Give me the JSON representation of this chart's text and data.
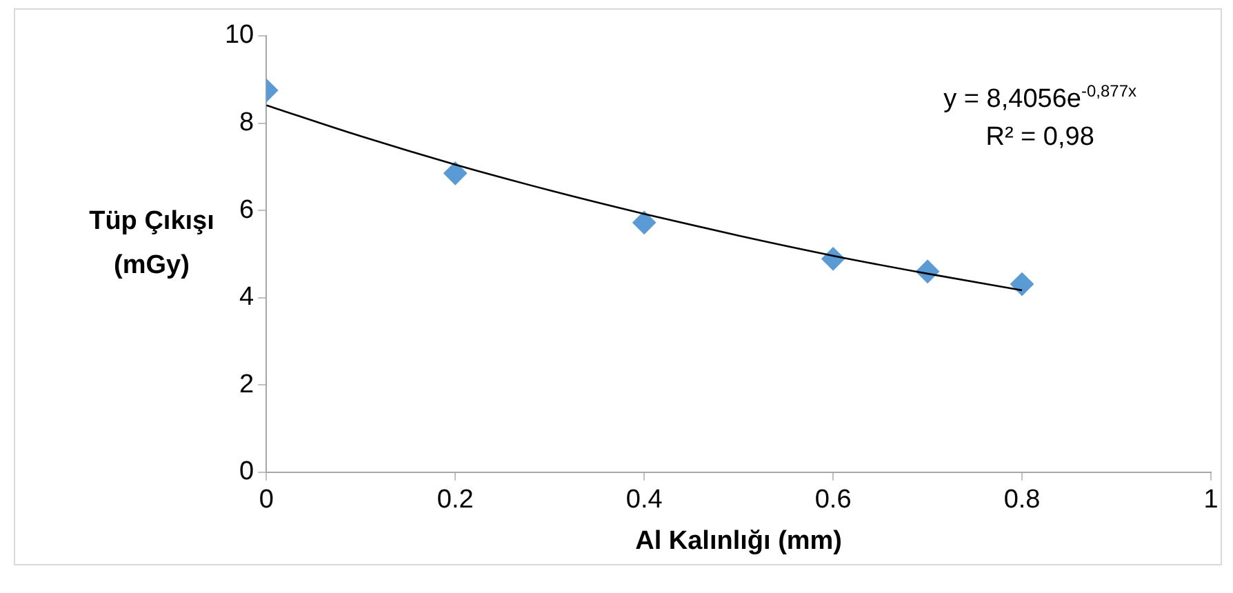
{
  "chart_data": {
    "type": "scatter",
    "xlabel": "Al Kalınlığı (mm)",
    "ylabel": "Tüp Çıkışı (mGy)",
    "annotations": [
      "y = 8,4056e$^{-0,877x}$",
      "R² = 0,98"
    ],
    "series": [
      {
        "type": "scatter",
        "color": "#5b9bd5",
        "marker": "diamond",
        "x": [
          0,
          0.2,
          0.4,
          0.6,
          0.7,
          0.8
        ],
        "values": [
          8.75,
          6.85,
          5.72,
          4.89,
          4.6,
          4.31
        ]
      },
      {
        "type": "line",
        "color": "#000000",
        "marker": "none",
        "x": [
          0,
          0.1,
          0.2,
          0.3,
          0.4,
          0.5,
          0.6,
          0.7,
          0.8
        ],
        "values": [
          8.41,
          7.7,
          7.05,
          6.46,
          5.92,
          5.42,
          4.96,
          4.55,
          4.17
        ]
      }
    ],
    "xlim": [
      0,
      1
    ],
    "xticks": [
      0,
      0.2,
      0.4,
      0.6,
      0.8,
      1
    ],
    "ylim": [
      0,
      10
    ],
    "yticks": [
      0,
      2,
      4,
      6,
      8,
      10
    ],
    "grid": false,
    "legend": false
  }
}
